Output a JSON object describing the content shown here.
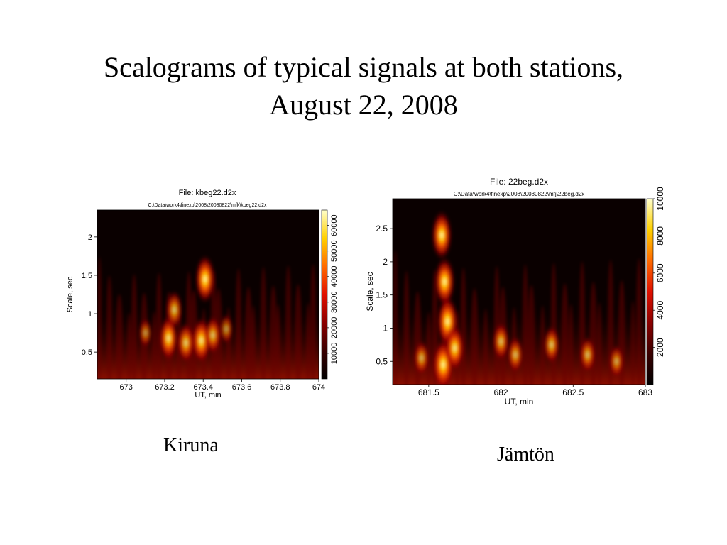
{
  "slide": {
    "title_line1": "Scalograms of typical signals at both stations,",
    "title_line2": "August 22, 2008"
  },
  "chart_data": [
    {
      "type": "heatmap",
      "station": "Kiruna",
      "title": "File: kbeg22.d2x",
      "subtitle": "C:\\Data\\work4\\finexp\\2008\\20080822\\mfk\\kbeg22.d2x",
      "xlabel": "UT, min",
      "ylabel": "Scale, sec",
      "xlim": [
        672.85,
        674.0
      ],
      "ylim": [
        0.15,
        2.35
      ],
      "xticks": [
        673,
        673.2,
        673.4,
        673.6,
        673.8,
        674
      ],
      "xtick_labels": [
        "673",
        "673.2",
        "673.4",
        "673.6",
        "673.8",
        "674"
      ],
      "yticks": [
        0.5,
        1,
        1.5,
        2
      ],
      "ytick_labels": [
        "0.5",
        "1",
        "1.5",
        "2"
      ],
      "colorbar": {
        "min": 0,
        "max": 66000,
        "ticks": [
          10000,
          20000,
          30000,
          40000,
          50000,
          60000
        ],
        "tick_labels": [
          "10000",
          "20000",
          "30000",
          "40000",
          "50000",
          "60000"
        ]
      },
      "colormap": [
        "#000000",
        "#3a0000",
        "#8b0000",
        "#e01000",
        "#ff6a00",
        "#ffd000",
        "#ffffcc"
      ],
      "features": [
        {
          "x": 673.22,
          "y": 0.68,
          "intensity": 0.82
        },
        {
          "x": 673.25,
          "y": 1.05,
          "intensity": 0.62
        },
        {
          "x": 673.31,
          "y": 0.62,
          "intensity": 0.68
        },
        {
          "x": 673.39,
          "y": 0.65,
          "intensity": 0.85
        },
        {
          "x": 673.41,
          "y": 1.45,
          "intensity": 0.92
        },
        {
          "x": 673.45,
          "y": 0.72,
          "intensity": 0.6
        },
        {
          "x": 673.1,
          "y": 0.75,
          "intensity": 0.32
        },
        {
          "x": 673.52,
          "y": 0.8,
          "intensity": 0.35
        }
      ]
    },
    {
      "type": "heatmap",
      "station": "Jämtön",
      "title": "File: 22beg.d2x",
      "subtitle": "C:\\Data\\work4\\finexp\\2008\\20080822\\mfj\\22beg.d2x",
      "xlabel": "UT, min",
      "ylabel": "Scale, sec",
      "xlim": [
        681.25,
        683.0
      ],
      "ylim": [
        0.15,
        2.95
      ],
      "xticks": [
        681.5,
        682,
        682.5,
        683
      ],
      "xtick_labels": [
        "681.5",
        "682",
        "682.5",
        "683"
      ],
      "yticks": [
        0.5,
        1,
        1.5,
        2,
        2.5
      ],
      "ytick_labels": [
        "0.5",
        "1",
        "1.5",
        "2",
        "2.5"
      ],
      "colorbar": {
        "min": 0,
        "max": 10000,
        "ticks": [
          2000,
          4000,
          6000,
          8000,
          10000
        ],
        "tick_labels": [
          "2000",
          "4000",
          "6000",
          "8000",
          "10000"
        ]
      },
      "colormap": [
        "#000000",
        "#3a0000",
        "#8b0000",
        "#e01000",
        "#ff6a00",
        "#ffd000",
        "#ffffcc"
      ],
      "features": [
        {
          "x": 681.59,
          "y": 2.4,
          "intensity": 0.95
        },
        {
          "x": 681.61,
          "y": 1.7,
          "intensity": 0.95
        },
        {
          "x": 681.63,
          "y": 1.1,
          "intensity": 1.0
        },
        {
          "x": 681.6,
          "y": 0.45,
          "intensity": 1.0
        },
        {
          "x": 681.68,
          "y": 0.7,
          "intensity": 0.85
        },
        {
          "x": 681.45,
          "y": 0.55,
          "intensity": 0.5
        },
        {
          "x": 682.0,
          "y": 0.8,
          "intensity": 0.6
        },
        {
          "x": 682.1,
          "y": 0.6,
          "intensity": 0.55
        },
        {
          "x": 682.35,
          "y": 0.75,
          "intensity": 0.6
        },
        {
          "x": 682.6,
          "y": 0.6,
          "intensity": 0.55
        },
        {
          "x": 682.8,
          "y": 0.5,
          "intensity": 0.45
        }
      ]
    }
  ]
}
